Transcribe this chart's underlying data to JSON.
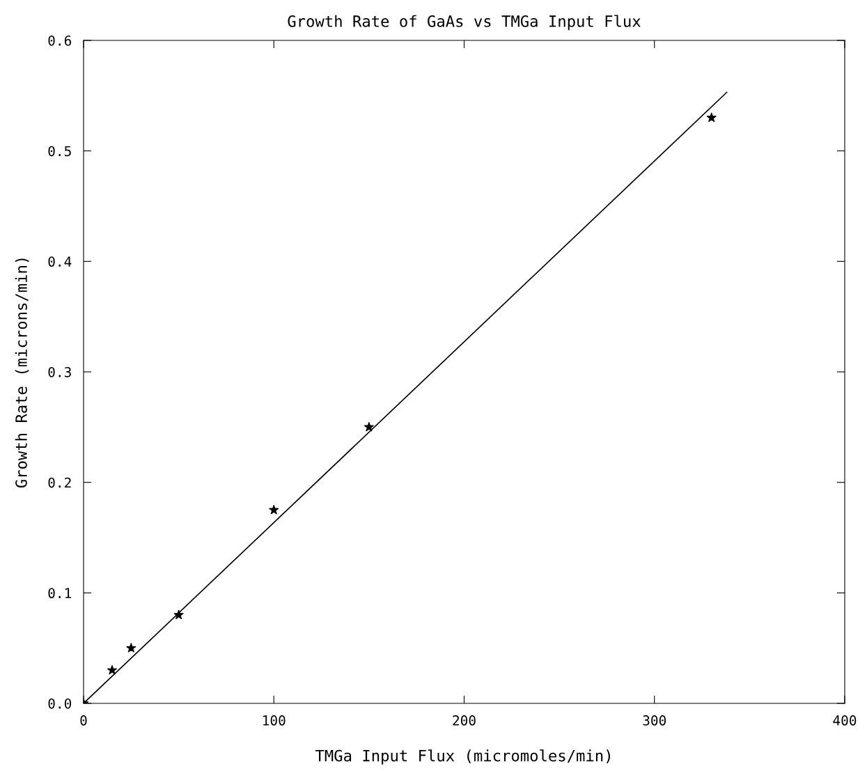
{
  "chart_data": {
    "type": "scatter",
    "title": "Growth Rate of GaAs vs TMGa Input Flux",
    "xlabel": "TMGa Input Flux (micromoles/min)",
    "ylabel": "Growth Rate (microns/min)",
    "series": [
      {
        "color": "#000000",
        "marker": "star",
        "x": [
          0,
          15,
          25,
          50,
          100,
          150,
          330
        ],
        "values": [
          0.0,
          0.03,
          0.05,
          0.08,
          0.175,
          0.25,
          0.53
        ]
      },
      {
        "type": "line",
        "color": "#000000",
        "marker": "none",
        "line_style": "solid",
        "x": [
          0,
          338
        ],
        "values": [
          0.0,
          0.553
        ]
      }
    ],
    "xlim": [
      0,
      400
    ],
    "ylim": [
      0,
      0.6
    ],
    "xticks": [
      0,
      100,
      200,
      300,
      400
    ],
    "yticks": [
      {
        "value": 0,
        "label": "0.0"
      },
      0.1,
      0.2,
      0.3,
      0.4,
      0.5,
      0.6
    ],
    "grid": false,
    "legend": false
  }
}
